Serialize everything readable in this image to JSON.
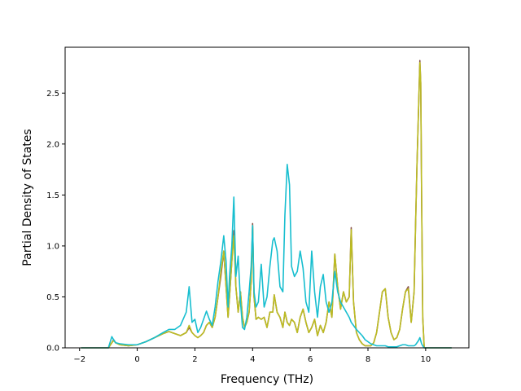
{
  "chart_data": {
    "type": "line",
    "title": "",
    "xlabel": "Frequency (THz)",
    "ylabel": "Partial Density of States",
    "xlim": [
      -2.5,
      11.5
    ],
    "ylim": [
      0.0,
      2.95
    ],
    "xticks": [
      -2,
      0,
      2,
      4,
      6,
      8,
      10
    ],
    "xtick_labels": [
      "−2",
      "0",
      "2",
      "4",
      "6",
      "8",
      "10"
    ],
    "yticks": [
      0.0,
      0.5,
      1.0,
      1.5,
      2.0,
      2.5
    ],
    "ytick_labels": [
      "0.0",
      "0.5",
      "1.0",
      "1.5",
      "2.0",
      "2.5"
    ],
    "grid": false,
    "legend": "none",
    "series": [
      {
        "color": "#8c564b",
        "x": [
          -1.95,
          -1.0,
          -0.88,
          -0.82,
          -0.75,
          -0.6,
          -0.3,
          0.0,
          0.3,
          0.6,
          0.9,
          1.1,
          1.3,
          1.5,
          1.7,
          1.8,
          1.9,
          2.0,
          2.1,
          2.2,
          2.3,
          2.4,
          2.5,
          2.6,
          2.7,
          2.8,
          2.9,
          3.0,
          3.08,
          3.15,
          3.2,
          3.28,
          3.35,
          3.42,
          3.5,
          3.58,
          3.65,
          3.72,
          3.8,
          3.88,
          3.95,
          4.0,
          4.05,
          4.12,
          4.2,
          4.3,
          4.4,
          4.5,
          4.6,
          4.7,
          4.75,
          4.85,
          4.95,
          5.05,
          5.12,
          5.2,
          5.28,
          5.35,
          5.45,
          5.55,
          5.65,
          5.75,
          5.85,
          5.95,
          6.05,
          6.15,
          6.25,
          6.35,
          6.45,
          6.55,
          6.65,
          6.75,
          6.85,
          6.95,
          7.05,
          7.15,
          7.25,
          7.35,
          7.42,
          7.5,
          7.6,
          7.7,
          7.8,
          7.9,
          8.0,
          8.1,
          8.2,
          8.3,
          8.4,
          8.5,
          8.6,
          8.7,
          8.8,
          8.9,
          9.0,
          9.1,
          9.2,
          9.3,
          9.4,
          9.5,
          9.6,
          9.65,
          9.7,
          9.75,
          9.8,
          9.83,
          9.86,
          9.9,
          9.95,
          10.0,
          10.2,
          10.5,
          10.9
        ],
        "y": [
          0.0,
          0.0,
          0.05,
          0.08,
          0.05,
          0.03,
          0.02,
          0.03,
          0.06,
          0.1,
          0.14,
          0.16,
          0.14,
          0.12,
          0.15,
          0.2,
          0.15,
          0.12,
          0.1,
          0.12,
          0.15,
          0.22,
          0.25,
          0.2,
          0.3,
          0.5,
          0.7,
          0.95,
          0.6,
          0.3,
          0.5,
          0.85,
          1.15,
          0.6,
          0.35,
          0.55,
          0.3,
          0.2,
          0.25,
          0.35,
          0.65,
          1.22,
          0.5,
          0.28,
          0.3,
          0.28,
          0.3,
          0.2,
          0.35,
          0.35,
          0.52,
          0.35,
          0.3,
          0.2,
          0.35,
          0.25,
          0.22,
          0.28,
          0.25,
          0.15,
          0.3,
          0.38,
          0.25,
          0.15,
          0.2,
          0.28,
          0.12,
          0.22,
          0.15,
          0.25,
          0.45,
          0.3,
          0.92,
          0.6,
          0.38,
          0.55,
          0.45,
          0.5,
          1.18,
          0.45,
          0.15,
          0.08,
          0.04,
          0.02,
          0.02,
          0.02,
          0.05,
          0.15,
          0.35,
          0.55,
          0.58,
          0.3,
          0.15,
          0.08,
          0.1,
          0.18,
          0.38,
          0.55,
          0.6,
          0.25,
          0.55,
          1.2,
          1.8,
          2.3,
          2.82,
          2.6,
          1.5,
          0.3,
          0.0,
          0.0,
          0.0,
          0.0,
          0.0
        ]
      },
      {
        "color": "#bcbd22",
        "x": [
          -1.95,
          -1.0,
          -0.88,
          -0.82,
          -0.75,
          -0.6,
          -0.3,
          0.0,
          0.3,
          0.6,
          0.9,
          1.1,
          1.3,
          1.5,
          1.7,
          1.8,
          1.9,
          2.0,
          2.1,
          2.2,
          2.3,
          2.4,
          2.5,
          2.6,
          2.7,
          2.8,
          2.9,
          3.0,
          3.08,
          3.15,
          3.2,
          3.28,
          3.35,
          3.42,
          3.5,
          3.58,
          3.65,
          3.72,
          3.8,
          3.88,
          3.95,
          4.0,
          4.05,
          4.12,
          4.2,
          4.3,
          4.4,
          4.5,
          4.6,
          4.7,
          4.75,
          4.85,
          4.95,
          5.05,
          5.12,
          5.2,
          5.28,
          5.35,
          5.45,
          5.55,
          5.65,
          5.75,
          5.85,
          5.95,
          6.05,
          6.15,
          6.25,
          6.35,
          6.45,
          6.55,
          6.65,
          6.75,
          6.85,
          6.95,
          7.05,
          7.15,
          7.25,
          7.35,
          7.42,
          7.5,
          7.6,
          7.7,
          7.8,
          7.9,
          8.0,
          8.1,
          8.2,
          8.3,
          8.4,
          8.5,
          8.6,
          8.7,
          8.8,
          8.9,
          9.0,
          9.1,
          9.2,
          9.3,
          9.4,
          9.5,
          9.6,
          9.65,
          9.7,
          9.75,
          9.8,
          9.83,
          9.86,
          9.9,
          9.95,
          10.0,
          10.2,
          10.5,
          10.9
        ],
        "y": [
          0.0,
          0.0,
          0.05,
          0.07,
          0.05,
          0.03,
          0.02,
          0.03,
          0.06,
          0.1,
          0.14,
          0.16,
          0.14,
          0.12,
          0.15,
          0.22,
          0.15,
          0.12,
          0.1,
          0.12,
          0.15,
          0.22,
          0.25,
          0.2,
          0.3,
          0.5,
          0.75,
          0.95,
          0.6,
          0.3,
          0.5,
          0.85,
          1.1,
          0.6,
          0.35,
          0.55,
          0.3,
          0.2,
          0.25,
          0.35,
          0.65,
          1.2,
          0.5,
          0.28,
          0.3,
          0.28,
          0.3,
          0.2,
          0.35,
          0.35,
          0.52,
          0.35,
          0.3,
          0.2,
          0.35,
          0.25,
          0.22,
          0.28,
          0.25,
          0.15,
          0.3,
          0.38,
          0.25,
          0.15,
          0.2,
          0.28,
          0.12,
          0.22,
          0.15,
          0.25,
          0.45,
          0.3,
          0.92,
          0.6,
          0.38,
          0.55,
          0.45,
          0.5,
          1.16,
          0.45,
          0.15,
          0.08,
          0.04,
          0.02,
          0.02,
          0.02,
          0.05,
          0.15,
          0.35,
          0.55,
          0.58,
          0.3,
          0.15,
          0.08,
          0.1,
          0.18,
          0.38,
          0.55,
          0.58,
          0.25,
          0.55,
          1.2,
          1.8,
          2.3,
          2.8,
          2.6,
          1.5,
          0.3,
          0.0,
          0.0,
          0.0,
          0.0,
          0.0
        ]
      },
      {
        "color": "#17becf",
        "x": [
          -1.95,
          -1.0,
          -0.88,
          -0.82,
          -0.75,
          -0.6,
          -0.3,
          0.0,
          0.3,
          0.6,
          0.9,
          1.1,
          1.3,
          1.5,
          1.7,
          1.8,
          1.9,
          2.0,
          2.1,
          2.2,
          2.3,
          2.4,
          2.5,
          2.6,
          2.7,
          2.8,
          2.9,
          3.0,
          3.08,
          3.15,
          3.2,
          3.28,
          3.35,
          3.42,
          3.5,
          3.58,
          3.65,
          3.72,
          3.8,
          3.88,
          3.95,
          4.0,
          4.05,
          4.12,
          4.2,
          4.3,
          4.4,
          4.5,
          4.6,
          4.7,
          4.75,
          4.85,
          4.95,
          5.05,
          5.12,
          5.2,
          5.28,
          5.35,
          5.45,
          5.55,
          5.65,
          5.75,
          5.85,
          5.95,
          6.05,
          6.15,
          6.25,
          6.35,
          6.45,
          6.55,
          6.65,
          6.75,
          6.85,
          6.95,
          7.05,
          7.15,
          7.25,
          7.35,
          7.42,
          7.5,
          7.6,
          7.7,
          7.8,
          7.9,
          8.0,
          8.1,
          8.2,
          8.3,
          8.4,
          8.5,
          8.6,
          8.7,
          8.8,
          8.9,
          9.0,
          9.1,
          9.2,
          9.3,
          9.4,
          9.5,
          9.6,
          9.65,
          9.7,
          9.75,
          9.8,
          9.83,
          9.86,
          9.9,
          9.95,
          10.0,
          10.2,
          10.5,
          10.9
        ],
        "y": [
          0.0,
          0.0,
          0.11,
          0.08,
          0.05,
          0.04,
          0.03,
          0.03,
          0.06,
          0.1,
          0.15,
          0.18,
          0.18,
          0.22,
          0.35,
          0.6,
          0.25,
          0.28,
          0.15,
          0.2,
          0.28,
          0.36,
          0.28,
          0.22,
          0.4,
          0.65,
          0.85,
          1.1,
          0.85,
          0.4,
          0.7,
          1.0,
          1.48,
          0.7,
          0.9,
          0.45,
          0.2,
          0.18,
          0.3,
          0.55,
          0.8,
          1.2,
          0.55,
          0.4,
          0.45,
          0.82,
          0.4,
          0.5,
          0.8,
          1.05,
          1.08,
          0.95,
          0.6,
          0.55,
          1.3,
          1.8,
          1.6,
          0.8,
          0.7,
          0.75,
          0.95,
          0.78,
          0.45,
          0.35,
          0.95,
          0.55,
          0.3,
          0.6,
          0.72,
          0.45,
          0.35,
          0.45,
          0.75,
          0.55,
          0.45,
          0.4,
          0.35,
          0.3,
          0.25,
          0.22,
          0.18,
          0.15,
          0.12,
          0.08,
          0.06,
          0.04,
          0.03,
          0.02,
          0.02,
          0.02,
          0.02,
          0.01,
          0.01,
          0.01,
          0.01,
          0.02,
          0.03,
          0.03,
          0.02,
          0.02,
          0.02,
          0.03,
          0.05,
          0.07,
          0.1,
          0.07,
          0.04,
          0.02,
          0.0,
          0.0,
          0.0,
          0.0,
          0.0
        ]
      }
    ]
  }
}
